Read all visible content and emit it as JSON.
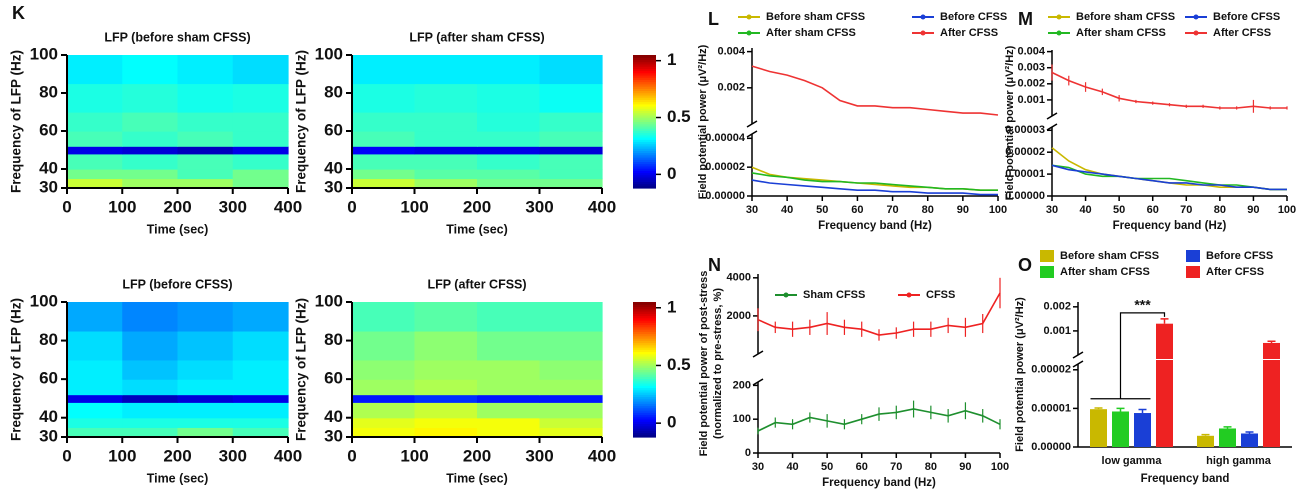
{
  "chart_data": [
    {
      "type": "heatmap",
      "panel": "K",
      "title": "LFP (before sham CFSS)",
      "xlabel": "Time (sec)",
      "ylabel": "Frequency of LFP (Hz)",
      "xlim": [
        0,
        400
      ],
      "xticks": [
        0,
        100,
        200,
        300,
        400
      ],
      "ylim": [
        30,
        100
      ],
      "yticks": [
        30,
        40,
        60,
        80,
        100
      ],
      "xbins": [
        0,
        100,
        200,
        300,
        400
      ],
      "ybins": [
        30,
        35,
        40,
        48,
        52,
        60,
        70,
        85,
        100
      ],
      "values": [
        [
          0.55,
          0.5,
          0.5,
          0.45
        ],
        [
          0.45,
          0.45,
          0.4,
          0.45
        ],
        [
          0.4,
          0.38,
          0.4,
          0.38
        ],
        [
          0.0,
          -0.02,
          -0.05,
          0.0
        ],
        [
          0.4,
          0.38,
          0.4,
          0.38
        ],
        [
          0.38,
          0.4,
          0.38,
          0.38
        ],
        [
          0.35,
          0.36,
          0.34,
          0.35
        ],
        [
          0.3,
          0.32,
          0.3,
          0.28
        ]
      ]
    },
    {
      "type": "heatmap",
      "title": "LFP (after sham CFSS)",
      "xlabel": "Time (sec)",
      "ylabel": "Frequency of LFP (Hz)",
      "xlim": [
        0,
        400
      ],
      "xticks": [
        0,
        100,
        200,
        300,
        400
      ],
      "ylim": [
        30,
        100
      ],
      "yticks": [
        30,
        40,
        60,
        80,
        100
      ],
      "xbins": [
        0,
        100,
        200,
        300,
        400
      ],
      "ybins": [
        30,
        35,
        40,
        48,
        52,
        60,
        70,
        85,
        100
      ],
      "values": [
        [
          0.55,
          0.5,
          0.45,
          0.45
        ],
        [
          0.45,
          0.42,
          0.42,
          0.4
        ],
        [
          0.4,
          0.4,
          0.38,
          0.4
        ],
        [
          0.02,
          0.0,
          0.0,
          -0.02
        ],
        [
          0.4,
          0.38,
          0.38,
          0.4
        ],
        [
          0.38,
          0.38,
          0.36,
          0.38
        ],
        [
          0.35,
          0.36,
          0.35,
          0.33
        ],
        [
          0.3,
          0.3,
          0.3,
          0.28
        ]
      ],
      "clim": [
        -0.12,
        1.05
      ],
      "cticks": [
        0,
        0.5,
        1
      ]
    },
    {
      "type": "heatmap",
      "title": "LFP (before CFSS)",
      "xlabel": "Time (sec)",
      "ylabel": "Frequency of LFP (Hz)",
      "xlim": [
        0,
        400
      ],
      "xticks": [
        0,
        100,
        200,
        300,
        400
      ],
      "ylim": [
        30,
        100
      ],
      "yticks": [
        30,
        40,
        60,
        80,
        100
      ],
      "xbins": [
        0,
        100,
        200,
        300,
        400
      ],
      "ybins": [
        30,
        35,
        40,
        48,
        52,
        60,
        70,
        85,
        100
      ],
      "values": [
        [
          0.4,
          0.4,
          0.45,
          0.4
        ],
        [
          0.35,
          0.35,
          0.35,
          0.35
        ],
        [
          0.32,
          0.3,
          0.3,
          0.3
        ],
        [
          0.0,
          -0.05,
          -0.02,
          0.0
        ],
        [
          0.3,
          0.28,
          0.3,
          0.3
        ],
        [
          0.3,
          0.25,
          0.28,
          0.3
        ],
        [
          0.28,
          0.22,
          0.25,
          0.28
        ],
        [
          0.22,
          0.18,
          0.2,
          0.22
        ]
      ]
    },
    {
      "type": "heatmap",
      "title": "LFP (after CFSS)",
      "xlabel": "Time (sec)",
      "ylabel": "Frequency of LFP (Hz)",
      "xlim": [
        0,
        400
      ],
      "xticks": [
        0,
        100,
        200,
        300,
        400
      ],
      "ylim": [
        30,
        100
      ],
      "yticks": [
        30,
        40,
        60,
        80,
        100
      ],
      "xbins": [
        0,
        100,
        200,
        300,
        400
      ],
      "ybins": [
        30,
        35,
        40,
        48,
        52,
        60,
        70,
        85,
        100
      ],
      "values": [
        [
          0.6,
          0.62,
          0.6,
          0.58
        ],
        [
          0.58,
          0.6,
          0.6,
          0.55
        ],
        [
          0.52,
          0.55,
          0.5,
          0.5
        ],
        [
          0.05,
          0.08,
          0.05,
          0.05
        ],
        [
          0.5,
          0.52,
          0.5,
          0.5
        ],
        [
          0.48,
          0.5,
          0.5,
          0.48
        ],
        [
          0.45,
          0.48,
          0.45,
          0.45
        ],
        [
          0.4,
          0.42,
          0.4,
          0.4
        ]
      ],
      "clim": [
        -0.12,
        1.05
      ],
      "cticks": [
        0,
        0.5,
        1
      ]
    },
    {
      "type": "line",
      "panel": "L",
      "xlabel": "Frequency band (Hz)",
      "ylabel": "Field potential power (μV²/Hz)",
      "x": [
        30,
        35,
        40,
        45,
        50,
        55,
        60,
        65,
        70,
        75,
        80,
        85,
        90,
        95,
        100
      ],
      "xlim": [
        30,
        100
      ],
      "xticks": [
        30,
        40,
        50,
        60,
        70,
        80,
        90,
        100
      ],
      "ylim": [
        0,
        4.3e-05
      ],
      "yticks": [
        {
          "value": 0,
          "label": "0.00000"
        },
        2e-05,
        4e-05
      ],
      "y2lim": [
        0,
        0.0042
      ],
      "y2ticks": [
        0.002,
        0.004
      ],
      "series": [
        {
          "name": "Before sham CFSS",
          "color": "#c9b800",
          "values": [
            2e-05,
            1.5e-05,
            1.3e-05,
            1.2e-05,
            1.1e-05,
            1e-05,
            9e-06,
            8e-06,
            7e-06,
            6e-06,
            6e-06,
            5e-06,
            5e-06,
            4e-06,
            4e-06
          ]
        },
        {
          "name": "After sham CFSS",
          "color": "#22b822",
          "values": [
            1.6e-05,
            1.4e-05,
            1.3e-05,
            1.1e-05,
            1e-05,
            1e-05,
            9e-06,
            9e-06,
            8e-06,
            7e-06,
            6e-06,
            5e-06,
            5e-06,
            4e-06,
            4e-06
          ]
        },
        {
          "name": "Before CFSS",
          "color": "#1a3fd6",
          "values": [
            1.1e-05,
            9e-06,
            8e-06,
            7e-06,
            6e-06,
            5e-06,
            4e-06,
            4e-06,
            3e-06,
            3e-06,
            2e-06,
            2e-06,
            2e-06,
            1e-06,
            1e-06
          ]
        },
        {
          "name": "After CFSS",
          "color": "#ee3333",
          "axis": "y2",
          "values": [
            0.0032,
            0.0029,
            0.0027,
            0.0024,
            0.002,
            0.0013,
            0.001,
            0.001,
            0.0009,
            0.0009,
            0.0008,
            0.0007,
            0.0006,
            0.0006,
            0.0005
          ]
        }
      ]
    },
    {
      "type": "line",
      "panel": "M",
      "xlabel": "Frequency band (Hz)",
      "ylabel": "Field potential power (μV²/Hz)",
      "x": [
        30,
        35,
        40,
        45,
        50,
        55,
        60,
        65,
        70,
        75,
        80,
        85,
        90,
        95,
        100
      ],
      "xlim": [
        30,
        100
      ],
      "xticks": [
        30,
        40,
        50,
        60,
        70,
        80,
        90,
        100
      ],
      "ylim": [
        0,
        3.15e-05
      ],
      "yticks": [
        {
          "value": 0,
          "label": "0.00000"
        },
        1e-05,
        2e-05,
        3e-05
      ],
      "y2lim": [
        0,
        0.0041
      ],
      "y2ticks": [
        0.001,
        0.002,
        0.003,
        0.004
      ],
      "series": [
        {
          "name": "Before sham CFSS",
          "color": "#c9b800",
          "values": [
            2.2e-05,
            1.6e-05,
            1.2e-05,
            1e-05,
            9e-06,
            8e-06,
            7e-06,
            6e-06,
            5e-06,
            5e-06,
            4e-06,
            4e-06,
            4e-06,
            3e-06,
            3e-06
          ]
        },
        {
          "name": "After sham CFSS",
          "color": "#22b822",
          "values": [
            1.4e-05,
            1.3e-05,
            1e-05,
            9e-06,
            9e-06,
            8e-06,
            8e-06,
            8e-06,
            7e-06,
            6e-06,
            5e-06,
            5e-06,
            4e-06,
            3e-06,
            3e-06
          ]
        },
        {
          "name": "Before CFSS",
          "color": "#1a3fd6",
          "values": [
            1.4e-05,
            1.2e-05,
            1.1e-05,
            1e-05,
            9e-06,
            8e-06,
            7e-06,
            6e-06,
            6e-06,
            5e-06,
            5e-06,
            4e-06,
            4e-06,
            3e-06,
            3e-06
          ]
        },
        {
          "name": "After CFSS",
          "color": "#ee3333",
          "axis": "y2",
          "values": [
            0.0027,
            0.0022,
            0.0018,
            0.0015,
            0.0011,
            0.0009,
            0.0008,
            0.0007,
            0.0006,
            0.0006,
            0.0005,
            0.0005,
            0.0006,
            0.0005,
            0.0005
          ],
          "errors": [
            0.0005,
            0.0003,
            0.0003,
            0.0002,
            0.0002,
            0.0001,
            0.0001,
            0.0001,
            0.0001,
            0.0001,
            0.0001,
            0.0001,
            0.0004,
            0.0001,
            0.0001
          ]
        }
      ]
    },
    {
      "type": "line",
      "panel": "N",
      "xlabel": "Frequency band (Hz)",
      "ylabel": [
        "Field potential power of post-stress",
        "(normalized to pre-stress, %)"
      ],
      "x": [
        30,
        35,
        40,
        45,
        50,
        55,
        60,
        65,
        70,
        75,
        80,
        85,
        90,
        95,
        100
      ],
      "xlim": [
        30,
        100
      ],
      "xticks": [
        30,
        40,
        50,
        60,
        70,
        80,
        90,
        100
      ],
      "ylim": [
        0,
        210
      ],
      "yticks": [
        0,
        100,
        200
      ],
      "y2lim": [
        0,
        4200
      ],
      "y2ticks": [
        2000,
        4000
      ],
      "series": [
        {
          "name": "Sham CFSS",
          "color": "#1e8f2e",
          "values": [
            65,
            90,
            85,
            105,
            95,
            85,
            100,
            115,
            120,
            130,
            120,
            110,
            125,
            110,
            85
          ],
          "errors": [
            10,
            15,
            15,
            15,
            20,
            15,
            15,
            20,
            20,
            25,
            20,
            20,
            25,
            20,
            15
          ]
        },
        {
          "name": "CFSS",
          "color": "#ee2222",
          "axis": "y2",
          "values": [
            1800,
            1400,
            1300,
            1400,
            1600,
            1400,
            1300,
            1000,
            1100,
            1300,
            1300,
            1500,
            1400,
            1600,
            3200
          ],
          "errors": [
            600,
            300,
            400,
            400,
            600,
            400,
            400,
            300,
            300,
            400,
            400,
            400,
            500,
            500,
            800
          ]
        }
      ]
    },
    {
      "type": "bar",
      "panel": "O",
      "xlabel": "Frequency band",
      "ylabel": "Field potential power (μV²/Hz)",
      "annotation": "***",
      "categories": [
        "low gamma",
        "high gamma"
      ],
      "ylim": [
        0,
        2.15e-05
      ],
      "yticks": [
        {
          "value": 0,
          "label": "0.00000"
        },
        1e-05,
        2e-05
      ],
      "y2lim": [
        0,
        0.0022
      ],
      "y2ticks": [
        0.001,
        0.002
      ],
      "series": [
        {
          "name": "Before sham CFSS",
          "color": "#c9b800",
          "values": [
            9.8e-06,
            2.9e-06
          ],
          "errors": [
            3e-07,
            3e-07
          ]
        },
        {
          "name": "After sham CFSS",
          "color": "#22cc22",
          "values": [
            9.2e-06,
            4.8e-06
          ],
          "errors": [
            8e-07,
            4e-07
          ]
        },
        {
          "name": "Before CFSS",
          "color": "#1a3fd6",
          "values": [
            8.8e-06,
            3.5e-06
          ],
          "errors": [
            9e-07,
            4e-07
          ]
        },
        {
          "name": "After CFSS",
          "color": "#ee2222",
          "axis": "y2",
          "values": [
            0.0013,
            0.0005
          ],
          "errors": [
            0.0002,
            7e-05
          ]
        }
      ]
    }
  ]
}
